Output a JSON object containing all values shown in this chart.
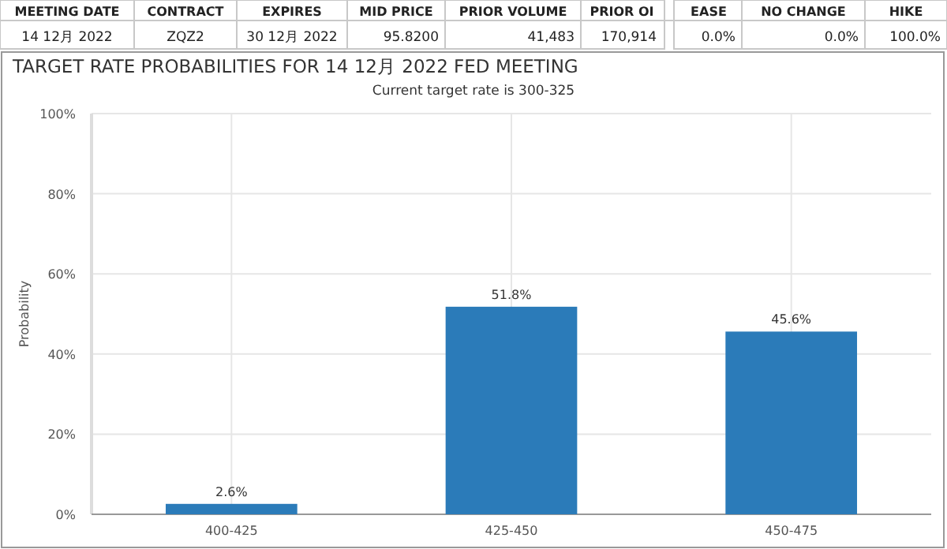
{
  "chart_data": [
    {
      "type": "other",
      "categories": [
        "MEETING DATE",
        "CONTRACT",
        "EXPIRES",
        "MID PRICE",
        "PRIOR VOLUME",
        "PRIOR OI",
        "EASE",
        "NO CHANGE",
        "HIKE"
      ],
      "annotations": [
        "14 12月 2022",
        "ZQZ2",
        "30 12月 2022",
        "95.8200",
        "41,483",
        "170,914",
        "0.0%",
        "0.0%",
        "100.0%"
      ]
    },
    {
      "type": "bar",
      "title": "TARGET RATE PROBABILITIES FOR 14 12月 2022 FED MEETING",
      "subtitle": "Current target rate is 300-325",
      "ylabel": "Probability",
      "categories": [
        "400-425",
        "425-450",
        "450-475"
      ],
      "values": [
        2.6,
        51.8,
        45.6
      ],
      "value_labels": [
        "2.6%",
        "51.8%",
        "45.6%"
      ],
      "color": "#2b7bb9",
      "ylim": [
        0,
        100
      ],
      "yticks": [
        {
          "value": 0,
          "label": "0%"
        },
        {
          "value": 20,
          "label": "20%"
        },
        {
          "value": 40,
          "label": "40%"
        },
        {
          "value": 60,
          "label": "60%"
        },
        {
          "value": 80,
          "label": "80%"
        },
        {
          "value": 100,
          "label": "100%"
        }
      ],
      "grid": true
    }
  ]
}
